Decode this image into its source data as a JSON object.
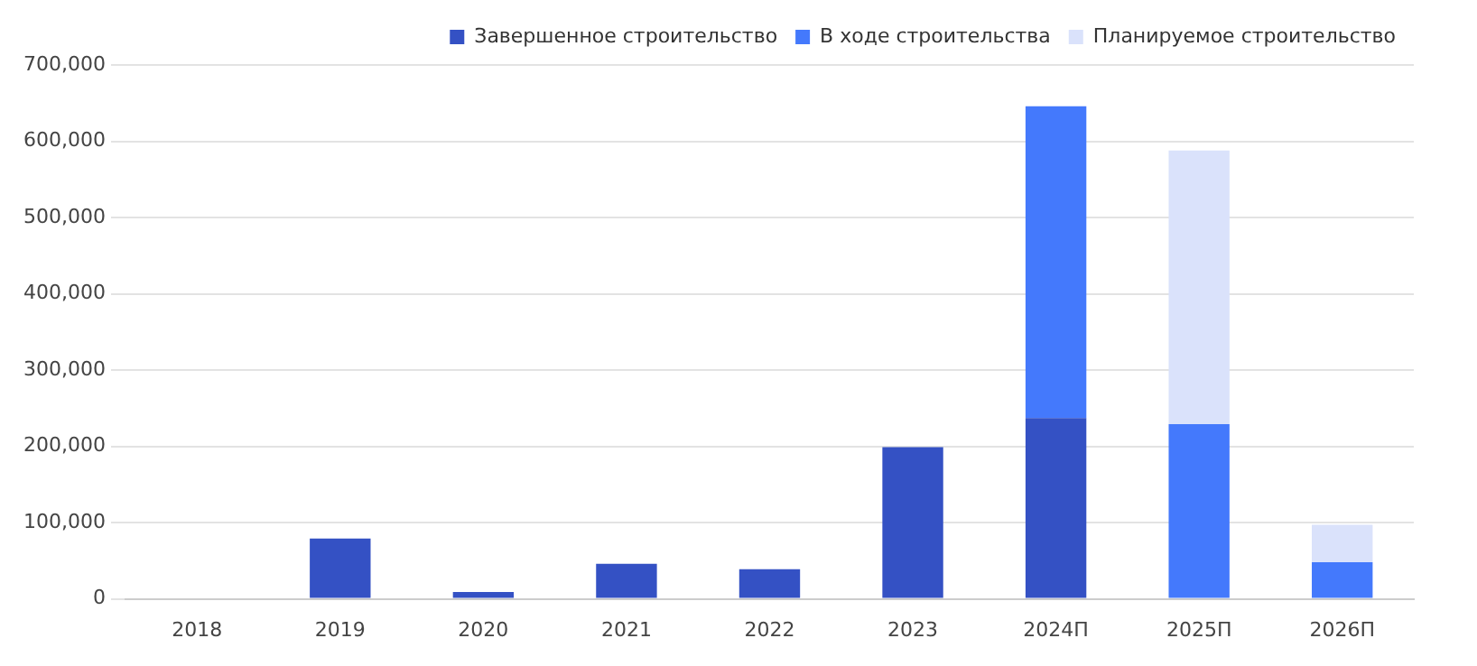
{
  "chart_data": {
    "type": "bar",
    "stacked": true,
    "categories": [
      "2018",
      "2019",
      "2020",
      "2021",
      "2022",
      "2023",
      "2024П",
      "2025П",
      "2026П"
    ],
    "series": [
      {
        "name": "Завершенное строительство",
        "color": "#3451c4",
        "values": [
          0,
          79000,
          9000,
          46000,
          39000,
          199000,
          237000,
          0,
          0
        ]
      },
      {
        "name": "В ходе строительства",
        "color": "#4479fc",
        "values": [
          0,
          0,
          0,
          0,
          0,
          0,
          409000,
          229000,
          48000
        ]
      },
      {
        "name": "Планируемое строительство",
        "color": "#dae2fb",
        "values": [
          0,
          0,
          0,
          0,
          0,
          0,
          0,
          359000,
          49000
        ]
      }
    ],
    "ylim": [
      0,
      700000
    ],
    "yticks": [
      {
        "value": 0,
        "label": "0"
      },
      {
        "value": 100000,
        "label": "100,000"
      },
      {
        "value": 200000,
        "label": "200,000"
      },
      {
        "value": 300000,
        "label": "300,000"
      },
      {
        "value": 400000,
        "label": "400,000"
      },
      {
        "value": 500000,
        "label": "500,000"
      },
      {
        "value": 600000,
        "label": "600,000"
      },
      {
        "value": 700000,
        "label": "700,000"
      }
    ],
    "grid": "y",
    "legend": "top right"
  }
}
